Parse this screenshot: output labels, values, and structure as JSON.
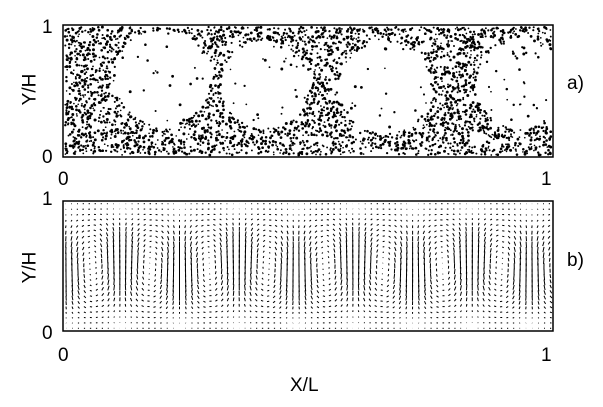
{
  "panels": [
    {
      "id": "a",
      "panel_label": "a)",
      "ylabel": "Y/H",
      "y_ticks": [
        "1",
        "0"
      ],
      "x_ticks": [
        "0",
        "1"
      ],
      "content": "particle scatter"
    },
    {
      "id": "b",
      "panel_label": "b)",
      "ylabel": "Y/H",
      "y_ticks": [
        "1",
        "0"
      ],
      "x_ticks": [
        "0",
        "1"
      ],
      "content": "velocity vector field"
    }
  ],
  "xlabel": "X/L"
}
